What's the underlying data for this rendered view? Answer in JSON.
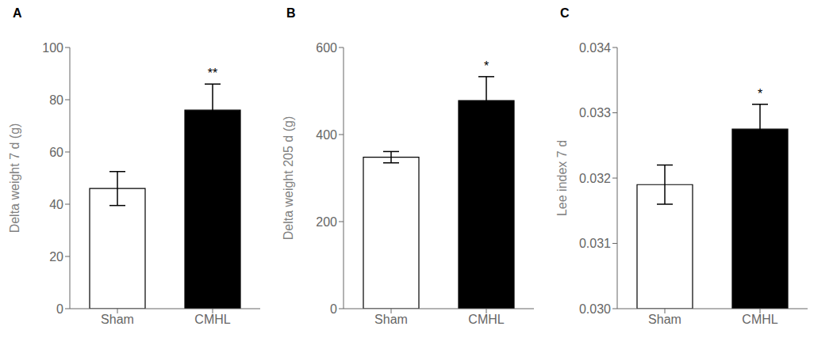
{
  "chart_data": [
    {
      "type": "bar",
      "title": "A",
      "ylabel": "Delta weight 7 d (g)",
      "categories": [
        "Sham",
        "CMHL"
      ],
      "values": [
        46.0,
        76.0
      ],
      "errors": [
        6.5,
        10.0
      ],
      "colors": [
        "white",
        "black"
      ],
      "ylim": [
        0,
        100
      ],
      "yticks": [
        0,
        20,
        40,
        60,
        80,
        100
      ],
      "annotations": [
        {
          "text": "**",
          "x": "CMHL"
        }
      ]
    },
    {
      "type": "bar",
      "title": "B",
      "ylabel": "Delta weight 205 d (g)",
      "categories": [
        "Sham",
        "CMHL"
      ],
      "values": [
        348.0,
        478.0
      ],
      "errors": [
        13.0,
        55.0
      ],
      "colors": [
        "white",
        "black"
      ],
      "ylim": [
        0,
        600
      ],
      "yticks": [
        0,
        200,
        400,
        600
      ],
      "annotations": [
        {
          "text": "*",
          "x": "CMHL"
        }
      ]
    },
    {
      "type": "bar",
      "title": "C",
      "ylabel": "Lee index 7 d",
      "categories": [
        "Sham",
        "CMHL"
      ],
      "values": [
        0.0319,
        0.03275
      ],
      "errors": [
        0.0003,
        0.00038
      ],
      "colors": [
        "white",
        "black"
      ],
      "ylim": [
        0.03,
        0.034
      ],
      "yticks": [
        {
          "value": 0.03,
          "label": "0.030"
        },
        0.031,
        0.032,
        0.033,
        0.034
      ],
      "annotations": [
        {
          "text": "*",
          "x": "CMHL"
        }
      ]
    }
  ]
}
